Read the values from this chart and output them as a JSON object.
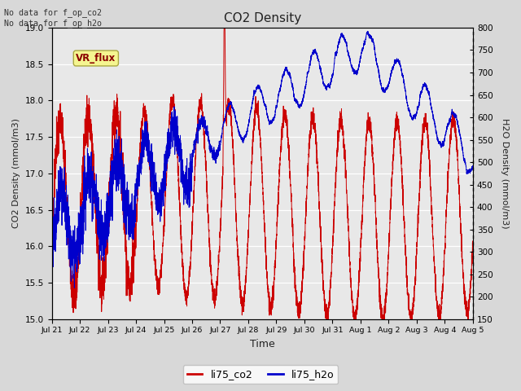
{
  "title": "CO2 Density",
  "xlabel": "Time",
  "ylabel_left": "CO2 Density (mmol/m3)",
  "ylabel_right": "H2O Density (mmol/m3)",
  "top_text_line1": "No data for f_op_co2",
  "top_text_line2": "No data for f_op_h2o",
  "legend_label1": "li75_co2",
  "legend_label2": "li75_h2o",
  "vr_flux_label": "VR_flux",
  "ylim_left": [
    15.0,
    19.0
  ],
  "ylim_right": [
    150,
    800
  ],
  "yticks_left": [
    15.0,
    15.5,
    16.0,
    16.5,
    17.0,
    17.5,
    18.0,
    18.5,
    19.0
  ],
  "yticks_right": [
    150,
    200,
    250,
    300,
    350,
    400,
    450,
    500,
    550,
    600,
    650,
    700,
    750,
    800
  ],
  "co2_color": "#cc0000",
  "h2o_color": "#0000cc",
  "fig_bg_color": "#d8d8d8",
  "plot_bg_color": "#e8e8e8",
  "grid_color": "#ffffff",
  "vr_flux_bg": "#f5f590",
  "vr_flux_border": "#aaa840",
  "vr_flux_text_color": "#8b0000",
  "xtick_labels": [
    "Jul 21",
    "Jul 22",
    "Jul 23",
    "Jul 24",
    "Jul 25",
    "Jul 26",
    "Jul 27",
    "Jul 28",
    "Jul 29",
    "Jul 30",
    "Jul 31",
    "Aug 1",
    "Aug 2",
    "Aug 3",
    "Aug 4",
    "Aug 5"
  ],
  "n_days": 15
}
